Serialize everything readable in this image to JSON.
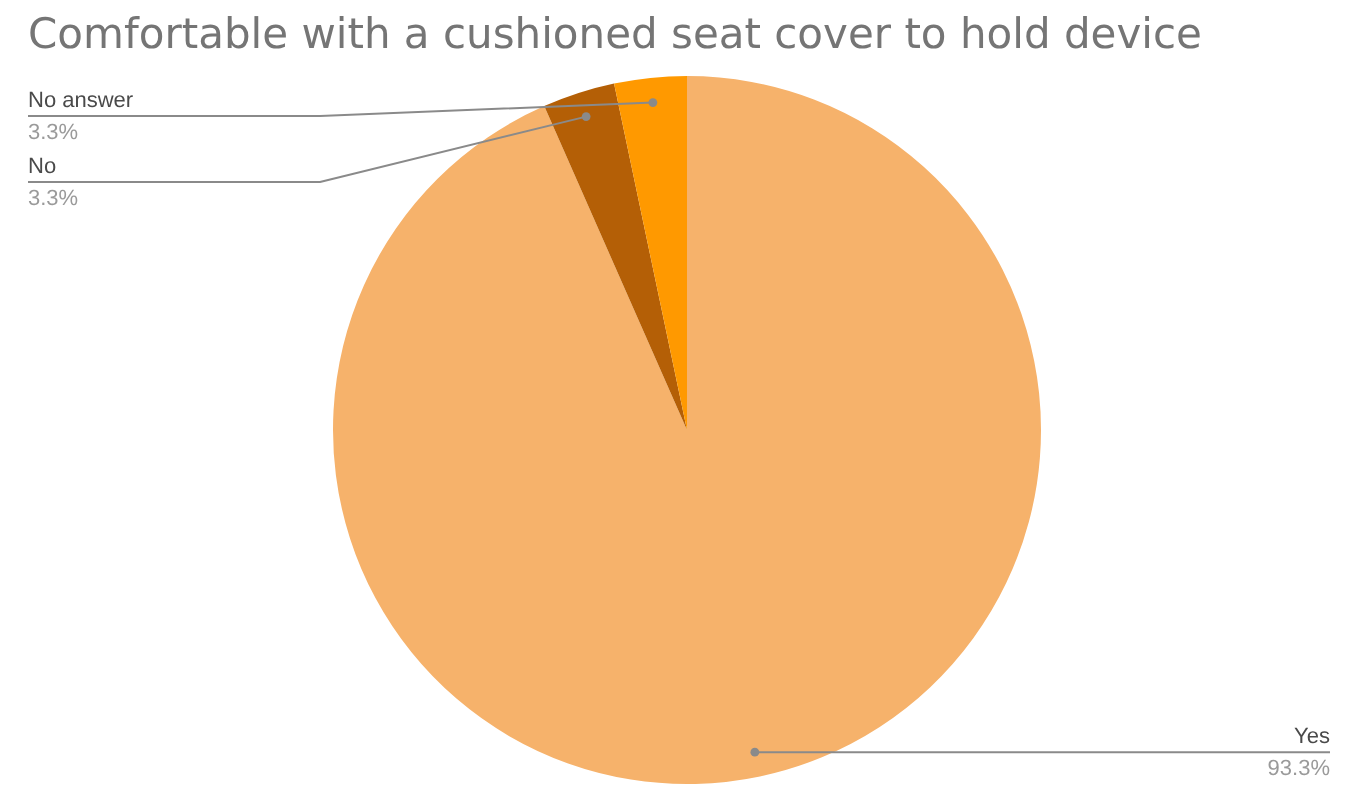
{
  "chart_data": {
    "type": "pie",
    "title": "Comfortable with a cushioned seat cover to hold device",
    "categories": [
      "Yes",
      "No",
      "No answer"
    ],
    "values": [
      93.3,
      3.3,
      3.3
    ],
    "colors": [
      "#f6b26b",
      "#b45f06",
      "#ff9900"
    ],
    "value_labels": [
      "93.3%",
      "3.3%",
      "3.3%"
    ],
    "legend": false
  }
}
